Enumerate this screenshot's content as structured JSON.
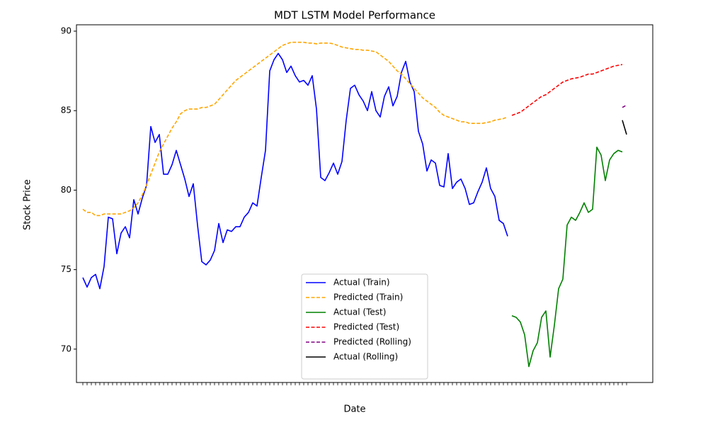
{
  "chart_data": {
    "type": "line",
    "title": "MDT LSTM Model Performance",
    "xlabel": "Date",
    "ylabel": "Stock Price",
    "ylim": [
      67.9,
      90.4
    ],
    "yticks": [
      70,
      75,
      80,
      85,
      90
    ],
    "legend": "lower center",
    "categories": [
      null,
      null,
      null,
      null,
      null,
      null,
      null,
      null,
      null,
      null,
      null,
      null,
      null,
      null,
      null,
      null,
      null,
      null,
      null,
      null,
      null,
      null,
      null,
      null,
      null,
      null,
      null,
      null,
      null,
      null,
      null,
      null,
      null,
      null,
      null,
      null,
      null,
      null,
      null,
      null,
      null,
      null,
      null,
      null,
      null,
      null,
      null,
      null,
      null,
      null,
      null,
      null,
      null,
      null,
      null,
      null,
      null,
      null,
      null,
      null,
      null,
      null,
      null,
      null,
      null,
      null,
      null,
      null,
      null,
      null,
      null,
      null,
      null,
      null,
      null,
      null,
      null,
      null,
      null,
      null,
      null,
      null,
      null,
      null,
      null,
      null,
      null,
      null,
      null,
      null,
      null,
      null,
      null,
      null,
      null,
      null,
      null,
      null,
      null,
      null,
      null,
      null,
      null,
      null,
      null,
      null,
      null,
      null,
      null,
      null,
      null,
      null,
      null,
      null,
      null,
      null,
      null,
      null,
      null,
      null,
      null,
      null,
      null,
      null,
      null,
      null,
      null,
      null,
      null
    ],
    "series": [
      {
        "name": "Actual (Train)",
        "color": "#0000ff",
        "style": "solid",
        "values": [
          74.5,
          73.9,
          74.5,
          74.7,
          73.8,
          75.2,
          78.3,
          78.2,
          76,
          77.3,
          77.7,
          77,
          79.4,
          78.5,
          79.5,
          80.3,
          84,
          83,
          83.5,
          81,
          81,
          81.6,
          82.5,
          81.6,
          80.7,
          79.6,
          80.4,
          77.8,
          75.5,
          75.3,
          75.6,
          76.2,
          77.9,
          76.7,
          77.5,
          77.4,
          77.7,
          77.7,
          78.3,
          78.6,
          79.2,
          79,
          80.8,
          82.5,
          87.5,
          88.2,
          88.6,
          88.2,
          87.4,
          87.8,
          87.2,
          86.8,
          86.9,
          86.6,
          87.2,
          85.1,
          80.8,
          80.6,
          81.1,
          81.7,
          81,
          81.8,
          84.4,
          86.4,
          86.6,
          86,
          85.6,
          85,
          86.2,
          85,
          84.6,
          85.9,
          86.5,
          85.3,
          85.9,
          87.4,
          88.1,
          86.8,
          86.2,
          83.7,
          82.9,
          81.2,
          81.9,
          81.7,
          80.3,
          80.2,
          82.3,
          80.1,
          80.5,
          80.7,
          80.1,
          79.1,
          79.2,
          79.9,
          80.5,
          81.4,
          80.1,
          79.6,
          78.1,
          77.9,
          77.1,
          null,
          null,
          null,
          null,
          null,
          null,
          null,
          null,
          null,
          null,
          null,
          null,
          null,
          null,
          null,
          null,
          null,
          null,
          null,
          null,
          null,
          null,
          null,
          null,
          null,
          null,
          null,
          null
        ]
      },
      {
        "name": "Predicted (Train)",
        "color": "#ffa500",
        "style": "dashed",
        "values": [
          78.8,
          78.6,
          78.6,
          78.4,
          78.4,
          78.5,
          78.5,
          78.5,
          78.5,
          78.5,
          78.6,
          78.7,
          78.9,
          79.2,
          79.7,
          80.3,
          81,
          81.7,
          82.4,
          82.9,
          83.4,
          83.9,
          84.3,
          84.8,
          85,
          85.1,
          85.1,
          85.1,
          85.2,
          85.2,
          85.3,
          85.4,
          85.7,
          86,
          86.3,
          86.6,
          86.9,
          87.1,
          87.3,
          87.5,
          87.7,
          87.9,
          88.1,
          88.3,
          88.5,
          88.7,
          88.9,
          89.1,
          89.2,
          89.3,
          89.3,
          89.3,
          89.3,
          89.25,
          89.25,
          89.2,
          89.25,
          89.25,
          89.25,
          89.2,
          89.1,
          89,
          88.95,
          88.9,
          88.85,
          88.85,
          88.8,
          88.8,
          88.75,
          88.7,
          88.5,
          88.3,
          88.1,
          87.8,
          87.5,
          87.3,
          87,
          86.7,
          86.4,
          86.1,
          85.8,
          85.6,
          85.4,
          85.2,
          84.9,
          84.7,
          84.6,
          84.5,
          84.4,
          84.3,
          84.3,
          84.2,
          84.2,
          84.2,
          84.2,
          84.25,
          84.3,
          84.4,
          84.45,
          84.5,
          84.6,
          null,
          null,
          null,
          null,
          null,
          null,
          null,
          null,
          null,
          null,
          null,
          null,
          null,
          null,
          null,
          null,
          null,
          null,
          null,
          null,
          null,
          null,
          null,
          null,
          null,
          null,
          null,
          null
        ]
      },
      {
        "name": "Actual (Test)",
        "color": "#008000",
        "style": "solid",
        "values": [
          null,
          null,
          null,
          null,
          null,
          null,
          null,
          null,
          null,
          null,
          null,
          null,
          null,
          null,
          null,
          null,
          null,
          null,
          null,
          null,
          null,
          null,
          null,
          null,
          null,
          null,
          null,
          null,
          null,
          null,
          null,
          null,
          null,
          null,
          null,
          null,
          null,
          null,
          null,
          null,
          null,
          null,
          null,
          null,
          null,
          null,
          null,
          null,
          null,
          null,
          null,
          null,
          null,
          null,
          null,
          null,
          null,
          null,
          null,
          null,
          null,
          null,
          null,
          null,
          null,
          null,
          null,
          null,
          null,
          null,
          null,
          null,
          null,
          null,
          null,
          null,
          null,
          null,
          null,
          null,
          null,
          null,
          null,
          null,
          null,
          null,
          null,
          null,
          null,
          null,
          null,
          null,
          null,
          null,
          null,
          null,
          null,
          null,
          null,
          null,
          null,
          72.1,
          72,
          71.7,
          70.9,
          68.9,
          69.9,
          70.4,
          72,
          72.4,
          69.5,
          71.5,
          73.8,
          74.4,
          77.8,
          78.3,
          78.1,
          78.6,
          79.2,
          78.6,
          78.8,
          82.7,
          82.2,
          80.6,
          81.9,
          82.3,
          82.5,
          82.4,
          null
        ]
      },
      {
        "name": "Predicted (Test)",
        "color": "#ff0000",
        "style": "dashed",
        "values": [
          null,
          null,
          null,
          null,
          null,
          null,
          null,
          null,
          null,
          null,
          null,
          null,
          null,
          null,
          null,
          null,
          null,
          null,
          null,
          null,
          null,
          null,
          null,
          null,
          null,
          null,
          null,
          null,
          null,
          null,
          null,
          null,
          null,
          null,
          null,
          null,
          null,
          null,
          null,
          null,
          null,
          null,
          null,
          null,
          null,
          null,
          null,
          null,
          null,
          null,
          null,
          null,
          null,
          null,
          null,
          null,
          null,
          null,
          null,
          null,
          null,
          null,
          null,
          null,
          null,
          null,
          null,
          null,
          null,
          null,
          null,
          null,
          null,
          null,
          null,
          null,
          null,
          null,
          null,
          null,
          null,
          null,
          null,
          null,
          null,
          null,
          null,
          null,
          null,
          null,
          null,
          null,
          null,
          null,
          null,
          null,
          null,
          null,
          null,
          null,
          null,
          84.7,
          84.8,
          84.9,
          85.1,
          85.3,
          85.5,
          85.7,
          85.9,
          86,
          86.2,
          86.4,
          86.6,
          86.8,
          86.9,
          87,
          87.05,
          87.1,
          87.2,
          87.3,
          87.3,
          87.4,
          87.5,
          87.6,
          87.7,
          87.8,
          87.85,
          87.9,
          null
        ]
      },
      {
        "name": "Predicted (Rolling)",
        "color": "#800080",
        "style": "dashed",
        "values": [
          null,
          null,
          null,
          null,
          null,
          null,
          null,
          null,
          null,
          null,
          null,
          null,
          null,
          null,
          null,
          null,
          null,
          null,
          null,
          null,
          null,
          null,
          null,
          null,
          null,
          null,
          null,
          null,
          null,
          null,
          null,
          null,
          null,
          null,
          null,
          null,
          null,
          null,
          null,
          null,
          null,
          null,
          null,
          null,
          null,
          null,
          null,
          null,
          null,
          null,
          null,
          null,
          null,
          null,
          null,
          null,
          null,
          null,
          null,
          null,
          null,
          null,
          null,
          null,
          null,
          null,
          null,
          null,
          null,
          null,
          null,
          null,
          null,
          null,
          null,
          null,
          null,
          null,
          null,
          null,
          null,
          null,
          null,
          null,
          null,
          null,
          null,
          null,
          null,
          null,
          null,
          null,
          null,
          null,
          null,
          null,
          null,
          null,
          null,
          null,
          null,
          null,
          null,
          null,
          null,
          null,
          null,
          null,
          null,
          null,
          null,
          null,
          null,
          null,
          null,
          null,
          null,
          null,
          null,
          null,
          null,
          null,
          null,
          null,
          null,
          null,
          null,
          85.2,
          85.35
        ]
      },
      {
        "name": "Actual (Rolling)",
        "color": "#000000",
        "style": "solid",
        "values": [
          null,
          null,
          null,
          null,
          null,
          null,
          null,
          null,
          null,
          null,
          null,
          null,
          null,
          null,
          null,
          null,
          null,
          null,
          null,
          null,
          null,
          null,
          null,
          null,
          null,
          null,
          null,
          null,
          null,
          null,
          null,
          null,
          null,
          null,
          null,
          null,
          null,
          null,
          null,
          null,
          null,
          null,
          null,
          null,
          null,
          null,
          null,
          null,
          null,
          null,
          null,
          null,
          null,
          null,
          null,
          null,
          null,
          null,
          null,
          null,
          null,
          null,
          null,
          null,
          null,
          null,
          null,
          null,
          null,
          null,
          null,
          null,
          null,
          null,
          null,
          null,
          null,
          null,
          null,
          null,
          null,
          null,
          null,
          null,
          null,
          null,
          null,
          null,
          null,
          null,
          null,
          null,
          null,
          null,
          null,
          null,
          null,
          null,
          null,
          null,
          null,
          null,
          null,
          null,
          null,
          null,
          null,
          null,
          null,
          null,
          null,
          null,
          null,
          null,
          null,
          null,
          null,
          null,
          null,
          null,
          null,
          null,
          null,
          null,
          null,
          null,
          null,
          84.4,
          83.5
        ]
      }
    ]
  }
}
